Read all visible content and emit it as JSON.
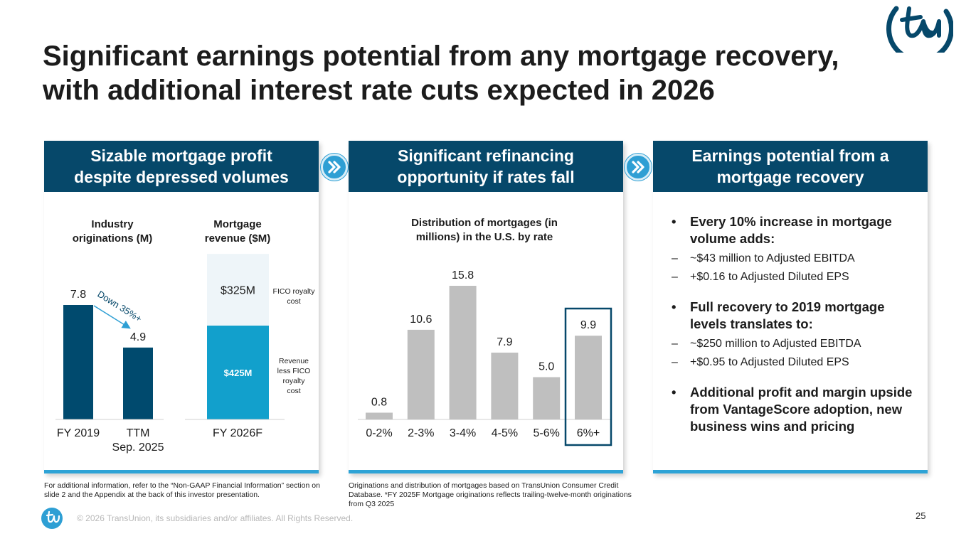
{
  "title_line1": "Significant earnings potential from any mortgage recovery,",
  "title_line2": "with additional interest rate cuts expected in 2026",
  "logo_icon": "transunion-logo-icon",
  "colors": {
    "navy": "#06486a",
    "accent": "#2ea3d6",
    "gray_bar": "#bfbfbf",
    "light_bar": "#eef5f9",
    "cyan_bar": "#12a0cc",
    "dark_bar": "#004a6e"
  },
  "panels": [
    {
      "header_line1": "Sizable mortgage profit",
      "header_line2": "despite depressed volumes"
    },
    {
      "header_line1": "Significant refinancing",
      "header_line2": "opportunity if rates fall"
    },
    {
      "header_line1": "Earnings potential from a",
      "header_line2": "mortgage recovery"
    }
  ],
  "chart_data": [
    {
      "type": "bar",
      "title_line1": "Industry",
      "title_line2": "originations (M)",
      "categories": [
        "FY 2019",
        "TTM"
      ],
      "category_line2": [
        "",
        "Sep. 2025"
      ],
      "values": [
        7.8,
        4.9
      ],
      "value_labels": [
        "7.8",
        "4.9"
      ],
      "annotation": "Down 35%+"
    },
    {
      "type": "bar",
      "stacked": true,
      "title_line1": "Mortgage",
      "title_line2": "revenue ($M)",
      "categories": [
        "FY 2026F"
      ],
      "series": [
        {
          "name": "Revenue less FICO royalty cost",
          "name_lines": [
            "Revenue",
            "less FICO",
            "royalty",
            "cost"
          ],
          "values": [
            425
          ],
          "label": "$425M"
        },
        {
          "name": "FICO royalty cost",
          "name_lines": [
            "FICO royalty",
            "cost"
          ],
          "values": [
            325
          ],
          "label": "$325M"
        }
      ]
    },
    {
      "type": "bar",
      "title_line1": "Distribution of mortgages (in",
      "title_line2": "millions) in the U.S. by rate",
      "categories": [
        "0-2%",
        "2-3%",
        "3-4%",
        "4-5%",
        "5-6%",
        "6%+"
      ],
      "values": [
        0.8,
        10.6,
        15.8,
        7.9,
        5.0,
        9.9
      ],
      "value_labels": [
        "0.8",
        "10.6",
        "15.8",
        "7.9",
        "5.0",
        "9.9"
      ],
      "highlight_category": "6%+"
    }
  ],
  "bullets": [
    {
      "main": "Every 10% increase in mortgage volume adds:",
      "subs": [
        "~$43 million to Adjusted EBITDA",
        "+$0.16 to Adjusted Diluted EPS"
      ]
    },
    {
      "main": "Full recovery to 2019 mortgage levels translates to:",
      "subs": [
        "~$250 million to Adjusted EBITDA",
        "+$0.95 to Adjusted Diluted EPS"
      ]
    },
    {
      "main": "Additional profit and margin upside from VantageScore adoption, new business wins and pricing",
      "subs": []
    }
  ],
  "footnote_left": "For additional information, refer to the “Non-GAAP Financial Information” section on slide 2 and the Appendix at the back of this investor presentation.",
  "footnote_right": "Originations and distribution of mortgages based on TransUnion Consumer Credit Database. *FY 2025F Mortgage originations reflects trailing-twelve-month originations from Q3 2025",
  "copyright": "© 2026 TransUnion, its subsidiaries and/or affiliates. All Rights Reserved.",
  "page_number": "25"
}
